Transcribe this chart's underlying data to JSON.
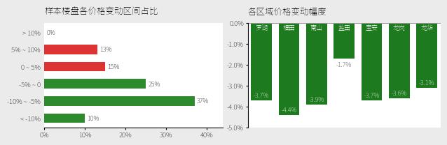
{
  "left_title": "样本楼盘各价格变动区间占比",
  "right_title": "各区域价格变动幅度",
  "left_categories": [
    "> 10%",
    "5% ~ 10%",
    "0 ~ 5%",
    "-5% ~ 0",
    "-10% ~ -5%",
    "< -10%"
  ],
  "left_values": [
    0,
    13,
    15,
    25,
    37,
    10
  ],
  "left_colors": [
    "#cccccc",
    "#dd3333",
    "#dd3333",
    "#2d8a2d",
    "#2d8a2d",
    "#2d8a2d"
  ],
  "left_xticks": [
    0,
    10,
    20,
    30,
    40
  ],
  "left_xtick_labels": [
    "0%",
    "10%",
    "20%",
    "30%",
    "40%"
  ],
  "right_categories": [
    "罗湖",
    "福田",
    "南山",
    "盐田",
    "宝安",
    "龙岗",
    "龙华"
  ],
  "right_values": [
    -3.7,
    -4.4,
    -3.9,
    -1.7,
    -3.7,
    -3.6,
    -3.1
  ],
  "right_color": "#1e7a1e",
  "right_ylim": [
    -5.0,
    0.0
  ],
  "right_yticks": [
    0.0,
    -1.0,
    -2.0,
    -3.0,
    -4.0,
    -5.0
  ],
  "right_ytick_labels": [
    "0.0%",
    "-1.0%",
    "-2.0%",
    "-3.0%",
    "-4.0%",
    "-5.0%"
  ],
  "background_color": "#ebebeb",
  "plot_bg": "#ffffff",
  "title_fontsize": 9,
  "tick_fontsize": 7,
  "label_fontsize": 6.5
}
